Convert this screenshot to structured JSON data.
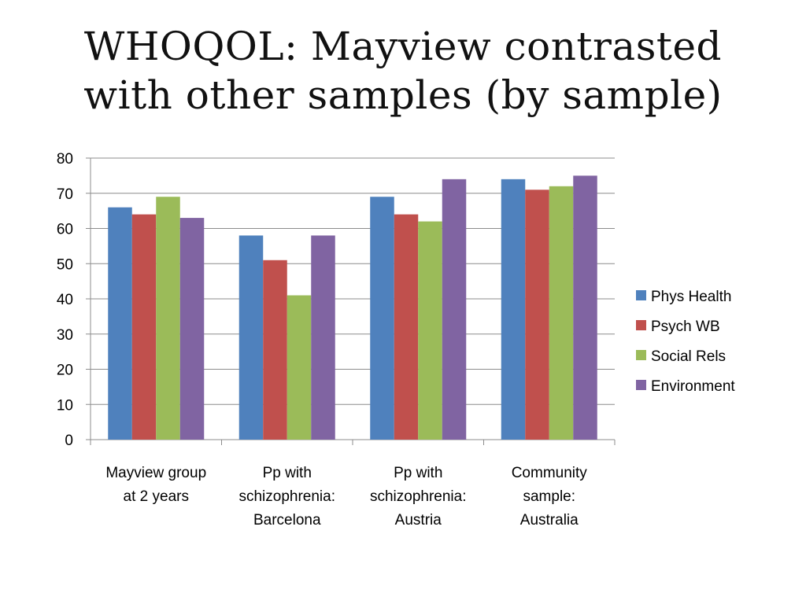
{
  "title": {
    "line1": "WHOQOL: Mayview contrasted",
    "line2": "with other samples (by sample)"
  },
  "chart_data": {
    "type": "bar",
    "categories": [
      [
        "Mayview group",
        "at 2 years"
      ],
      [
        "Pp with",
        "schizophrenia:",
        "Barcelona"
      ],
      [
        "Pp with",
        "schizophrenia:",
        "Austria"
      ],
      [
        "Community",
        "sample:",
        "Australia"
      ]
    ],
    "series": [
      {
        "name": "Phys Health",
        "color": "#4F81BD",
        "values": [
          66,
          58,
          69,
          74
        ]
      },
      {
        "name": "Psych WB",
        "color": "#C0504D",
        "values": [
          64,
          51,
          64,
          71
        ]
      },
      {
        "name": "Social Rels",
        "color": "#9BBB59",
        "values": [
          69,
          41,
          62,
          72
        ]
      },
      {
        "name": "Environment",
        "color": "#8064A2",
        "values": [
          63,
          58,
          74,
          75
        ]
      }
    ],
    "ylim": [
      0,
      80
    ],
    "yticks": [
      0,
      10,
      20,
      30,
      40,
      50,
      60,
      70,
      80
    ],
    "grid": true,
    "legend_position": "right"
  }
}
